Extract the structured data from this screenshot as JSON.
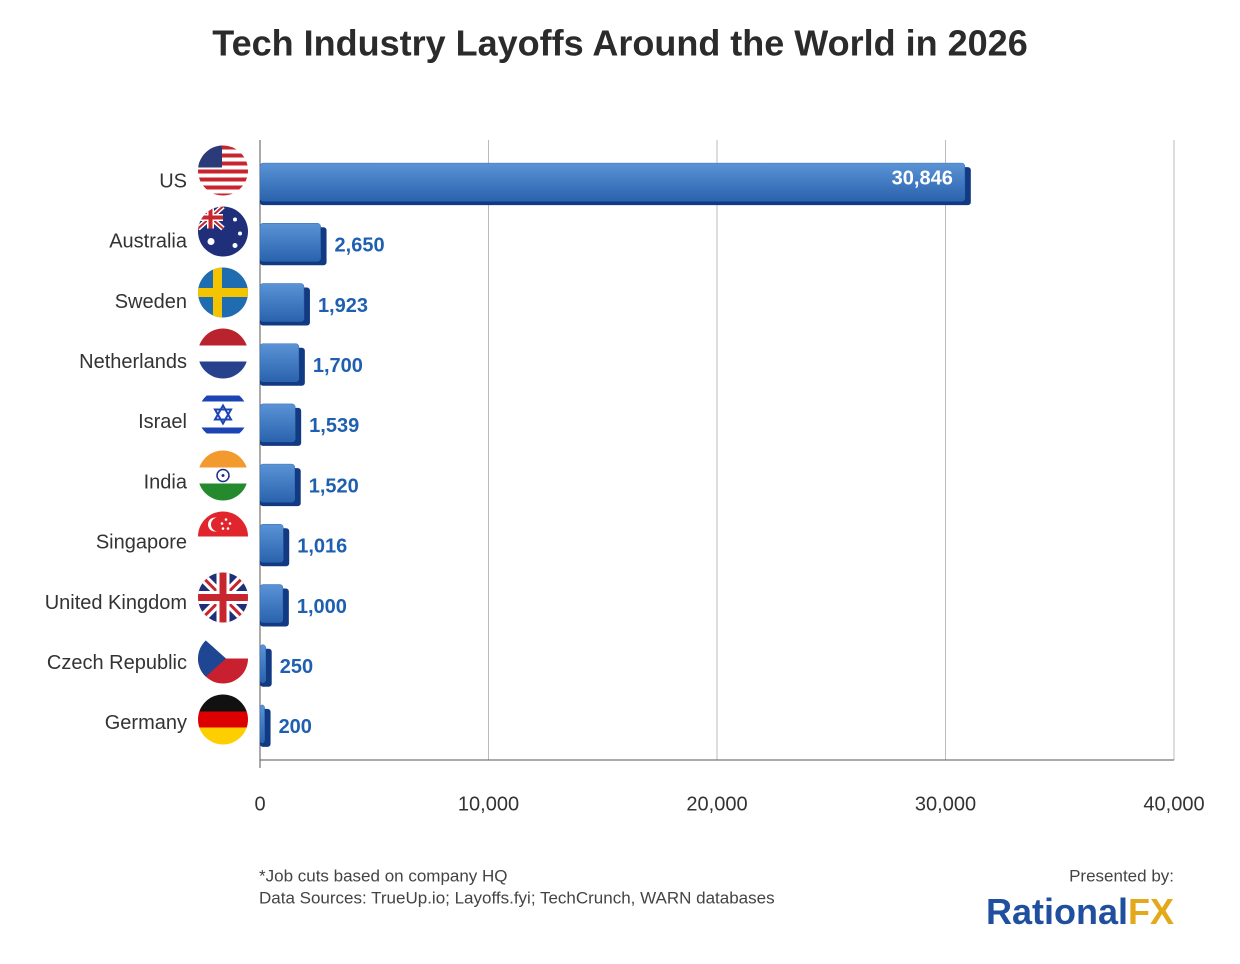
{
  "chart_data": {
    "type": "hbar",
    "title": "Tech Industry Layoffs Around the World in 2026",
    "categories": [
      "US",
      "Australia",
      "Sweden",
      "Netherlands",
      "Israel",
      "India",
      "Singapore",
      "United Kingdom",
      "Czech Republic",
      "Germany"
    ],
    "values": [
      30846,
      2650,
      1923,
      1700,
      1539,
      1520,
      1016,
      1000,
      250,
      200
    ],
    "value_labels": [
      "30,846",
      "2,650",
      "1,923",
      "1,700",
      "1,539",
      "1,520",
      "1,016",
      "1,000",
      "250",
      "200"
    ],
    "color": "#2f6db5",
    "xlim": [
      0,
      40000
    ],
    "xticks": [
      0,
      {
        "value": 10000,
        "label": "10,000"
      },
      {
        "value": 20000,
        "label": "20,000"
      },
      {
        "value": 30000,
        "label": "30,000"
      },
      {
        "value": 40000,
        "label": "40,000"
      }
    ],
    "grid": true,
    "notes": [
      "*Job cuts based on company HQ",
      "Data Sources: TrueUp.io; Layoffs.fyi; TechCrunch, WARN databases"
    ],
    "credit": "Presented by:",
    "logo": [
      "Rational",
      "FX"
    ]
  }
}
